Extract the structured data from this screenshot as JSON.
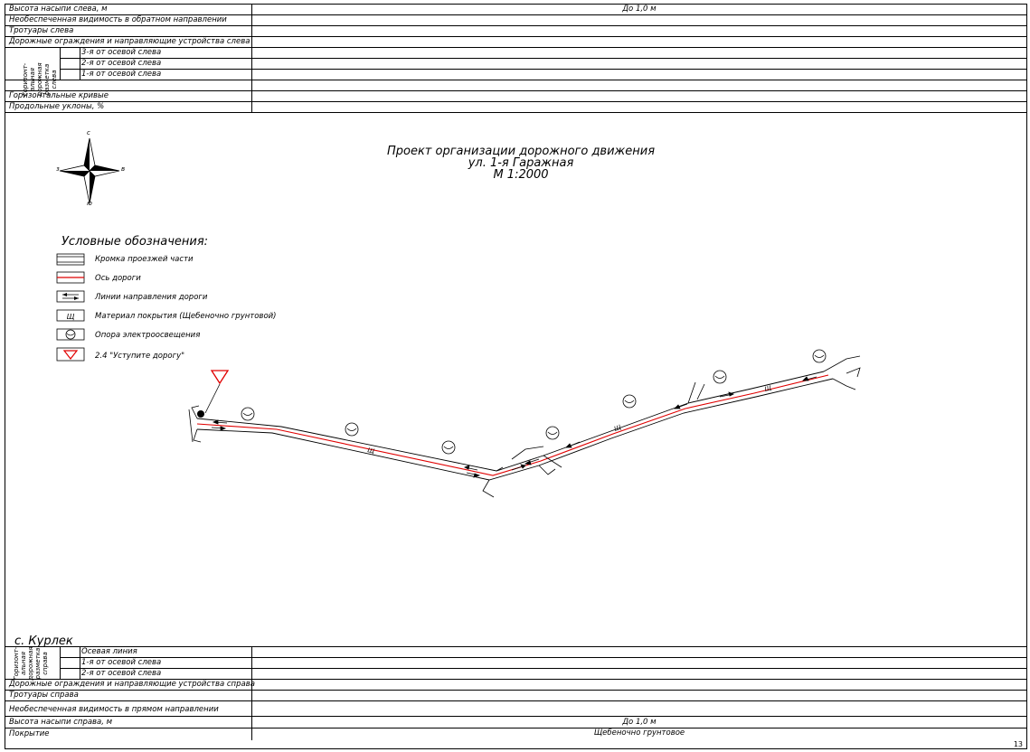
{
  "top_table": {
    "rows": [
      {
        "label": "Высота насыпи слева, м",
        "value": "До 1,0 м"
      },
      {
        "label": "Необеспеченная видимость в обратном направлении",
        "value": ""
      },
      {
        "label": "Тротуары слева",
        "value": ""
      },
      {
        "label": "Дорожные ограждения и направляющие устройства слева",
        "value": ""
      },
      {
        "label": "3-я от осевой слева",
        "value": ""
      },
      {
        "label": "2-я от осевой слева",
        "value": ""
      },
      {
        "label": "1-я от осевой слева",
        "value": ""
      },
      {
        "label": "Горизонтальные кривые",
        "value": ""
      },
      {
        "label": "Продольные уклоны, %",
        "value": ""
      }
    ],
    "group_label": "Горизонт-\nальная\nдорожная\nразметка\nслева"
  },
  "bottom_table": {
    "rows": [
      {
        "label": "Осевая линия",
        "value": ""
      },
      {
        "label": "1-я от осевой слева",
        "value": ""
      },
      {
        "label": "2-я от осевой слева",
        "value": ""
      },
      {
        "label": "Дорожные ограждения и направляющие устройства справа",
        "value": ""
      },
      {
        "label": "Тротуары справа",
        "value": ""
      },
      {
        "label": "Необеспеченная видимость в прямом направлении",
        "value": ""
      },
      {
        "label": "Высота насыпи справа, м",
        "value": "До 1,0 м"
      },
      {
        "label": "Покрытие",
        "value": "Щебеночно грунтовое"
      }
    ],
    "group_label": "Горизонт-\nальная\nдорожная\nразметка\nсправа"
  },
  "title": {
    "line1": "Проект организации дорожного движения",
    "line2": "ул. 1-я Гаражная",
    "line3": "М 1:2000"
  },
  "compass": {
    "n": "с",
    "s": "ю",
    "w": "з",
    "e": "в"
  },
  "legend": {
    "title": "Условные обозначения:",
    "items": [
      {
        "label": "Кромка проезжей части"
      },
      {
        "label": "Ось дороги"
      },
      {
        "label": "Линии направления дороги"
      },
      {
        "label": "Материал покрытия (Щебеночно грунтовой)",
        "glyph": "Щ"
      },
      {
        "label": "Опора электроосвещения"
      },
      {
        "label": "2.4 \"Уступите дорогу\""
      }
    ]
  },
  "village": "с. Курлек",
  "page_number": "13",
  "colors": {
    "road_axis": "#e00000",
    "sign": "#e00000",
    "line": "#000000"
  }
}
